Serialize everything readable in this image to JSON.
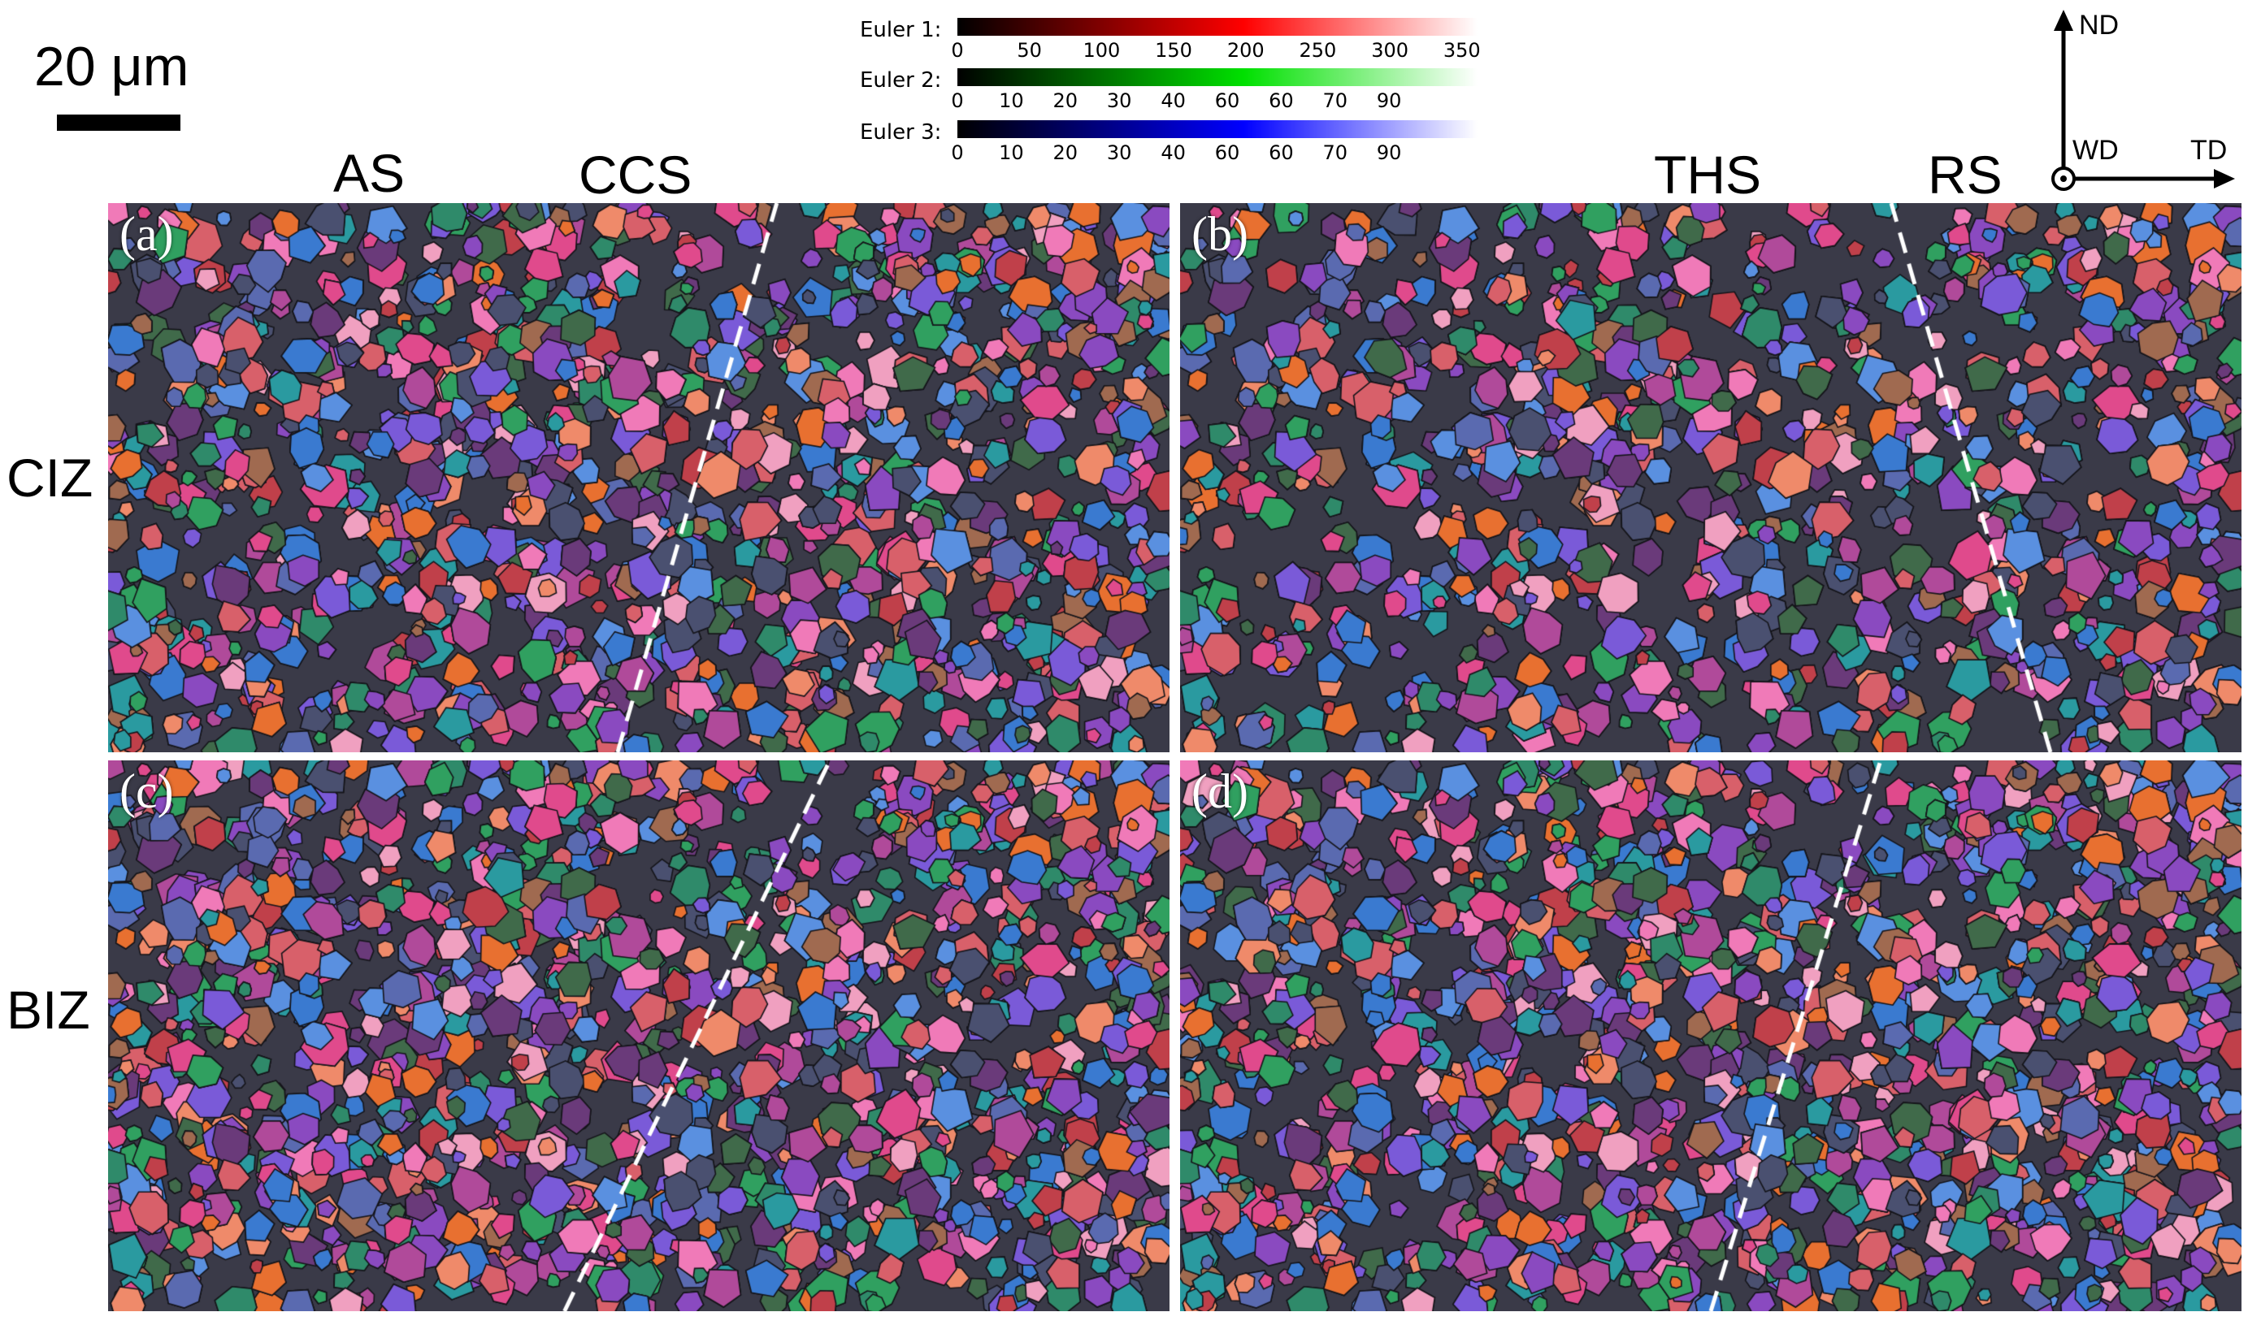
{
  "scale_bar": {
    "label": "20 μm"
  },
  "region_labels": {
    "as": "AS",
    "ccs": "CCS",
    "ths": "THS",
    "rs": "RS"
  },
  "row_labels": {
    "ciz": "CIZ",
    "biz": "BIZ"
  },
  "panels": [
    {
      "letter": "(a)"
    },
    {
      "letter": "(b)"
    },
    {
      "letter": "(c)"
    },
    {
      "letter": "(d)"
    }
  ],
  "colorbars": [
    {
      "label": "Euler 1:",
      "color_end": "#ff0000",
      "ticks": [
        "0",
        "50",
        "100",
        "150",
        "200",
        "250",
        "300",
        "350"
      ]
    },
    {
      "label": "Euler 2:",
      "color_end": "#00e000",
      "ticks": [
        "0",
        "10",
        "20",
        "30",
        "40",
        "60",
        "60",
        "70",
        "90"
      ]
    },
    {
      "label": "Euler 3:",
      "color_end": "#0000ff",
      "ticks": [
        "0",
        "10",
        "20",
        "30",
        "40",
        "60",
        "60",
        "70",
        "90"
      ]
    }
  ],
  "axes": {
    "nd": "ND",
    "wd": "WD",
    "td": "TD"
  }
}
